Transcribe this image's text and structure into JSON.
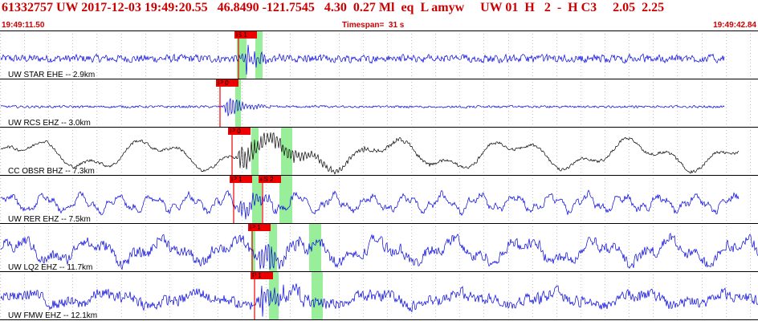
{
  "header": {
    "title": "61332757 UW 2017-12-03 19:49:20.55   46.8490 -121.7545   4.30  0.27 Ml  eq  L amyw     UW 01  H   2  -  H C3     2.05  2.25",
    "start_time": "19:49:11.50",
    "timespan": "Timespan=  31 s",
    "end_time": "19:49:42.84"
  },
  "colors": {
    "trace_blue": "#0000dd",
    "trace_black": "#000000",
    "pick_window": "#99ee99",
    "pick_box": "#ee0000",
    "header_red": "#cc0000",
    "grid": "#888888"
  },
  "channels": [
    {
      "label": "UW STAR EHE -- 2.9km",
      "color": "blue",
      "picks": [
        {
          "label": "iS 1",
          "window_s": 0.9
        }
      ],
      "wave": {
        "noise": 5,
        "low": 0,
        "lowPeriod": 200,
        "eventAmp": 22,
        "eventDecay": 0.06,
        "endFrac": 0.955
      }
    },
    {
      "label": "UW RCS EHZ -- 3.0km",
      "color": "blue",
      "picks": [
        {
          "label": "iP 0",
          "window_s": 0.5
        }
      ],
      "wave": {
        "noise": 1.5,
        "low": 0,
        "lowPeriod": 200,
        "eventAmp": 20,
        "eventDecay": 0.05,
        "endFrac": 0.955
      }
    },
    {
      "label": "CC OBSR BHZ -- 7.3km",
      "color": "black",
      "picks": [
        {
          "label": "iP 0",
          "window_s": 0.2
        }
      ],
      "wave": {
        "noise": 2,
        "low": 14,
        "lowPeriod": 150,
        "eventAmp": 16,
        "eventDecay": 0.012,
        "endFrac": 0.975
      }
    },
    {
      "label": "UW RER EHZ -- 7.5km",
      "color": "blue",
      "picks": [
        {
          "label": "iP 1",
          "window_s": 0.3
        },
        {
          "label": "eS 2",
          "window_s": 0.6
        }
      ],
      "wave": {
        "noise": 4,
        "low": 8,
        "lowPeriod": 45,
        "eventAmp": 16,
        "eventDecay": 0.03,
        "endFrac": 0.975
      }
    },
    {
      "label": "UW LQ2 EHZ -- 11.7km",
      "color": "blue",
      "picks": [
        {
          "label": "iP 1",
          "window_s": 0.4
        }
      ],
      "wave": {
        "noise": 7,
        "low": 11,
        "lowPeriod": 90,
        "eventAmp": 22,
        "eventDecay": 0.03,
        "endFrac": 1.0
      }
    },
    {
      "label": "UW FMW EHZ -- 12.1km",
      "color": "blue",
      "picks": [
        {
          "label": "P 1",
          "window_s": 0.4
        }
      ],
      "wave": {
        "noise": 7,
        "low": 6,
        "lowPeriod": 110,
        "eventAmp": 24,
        "eventDecay": 0.03,
        "endFrac": 1.0
      }
    }
  ]
}
